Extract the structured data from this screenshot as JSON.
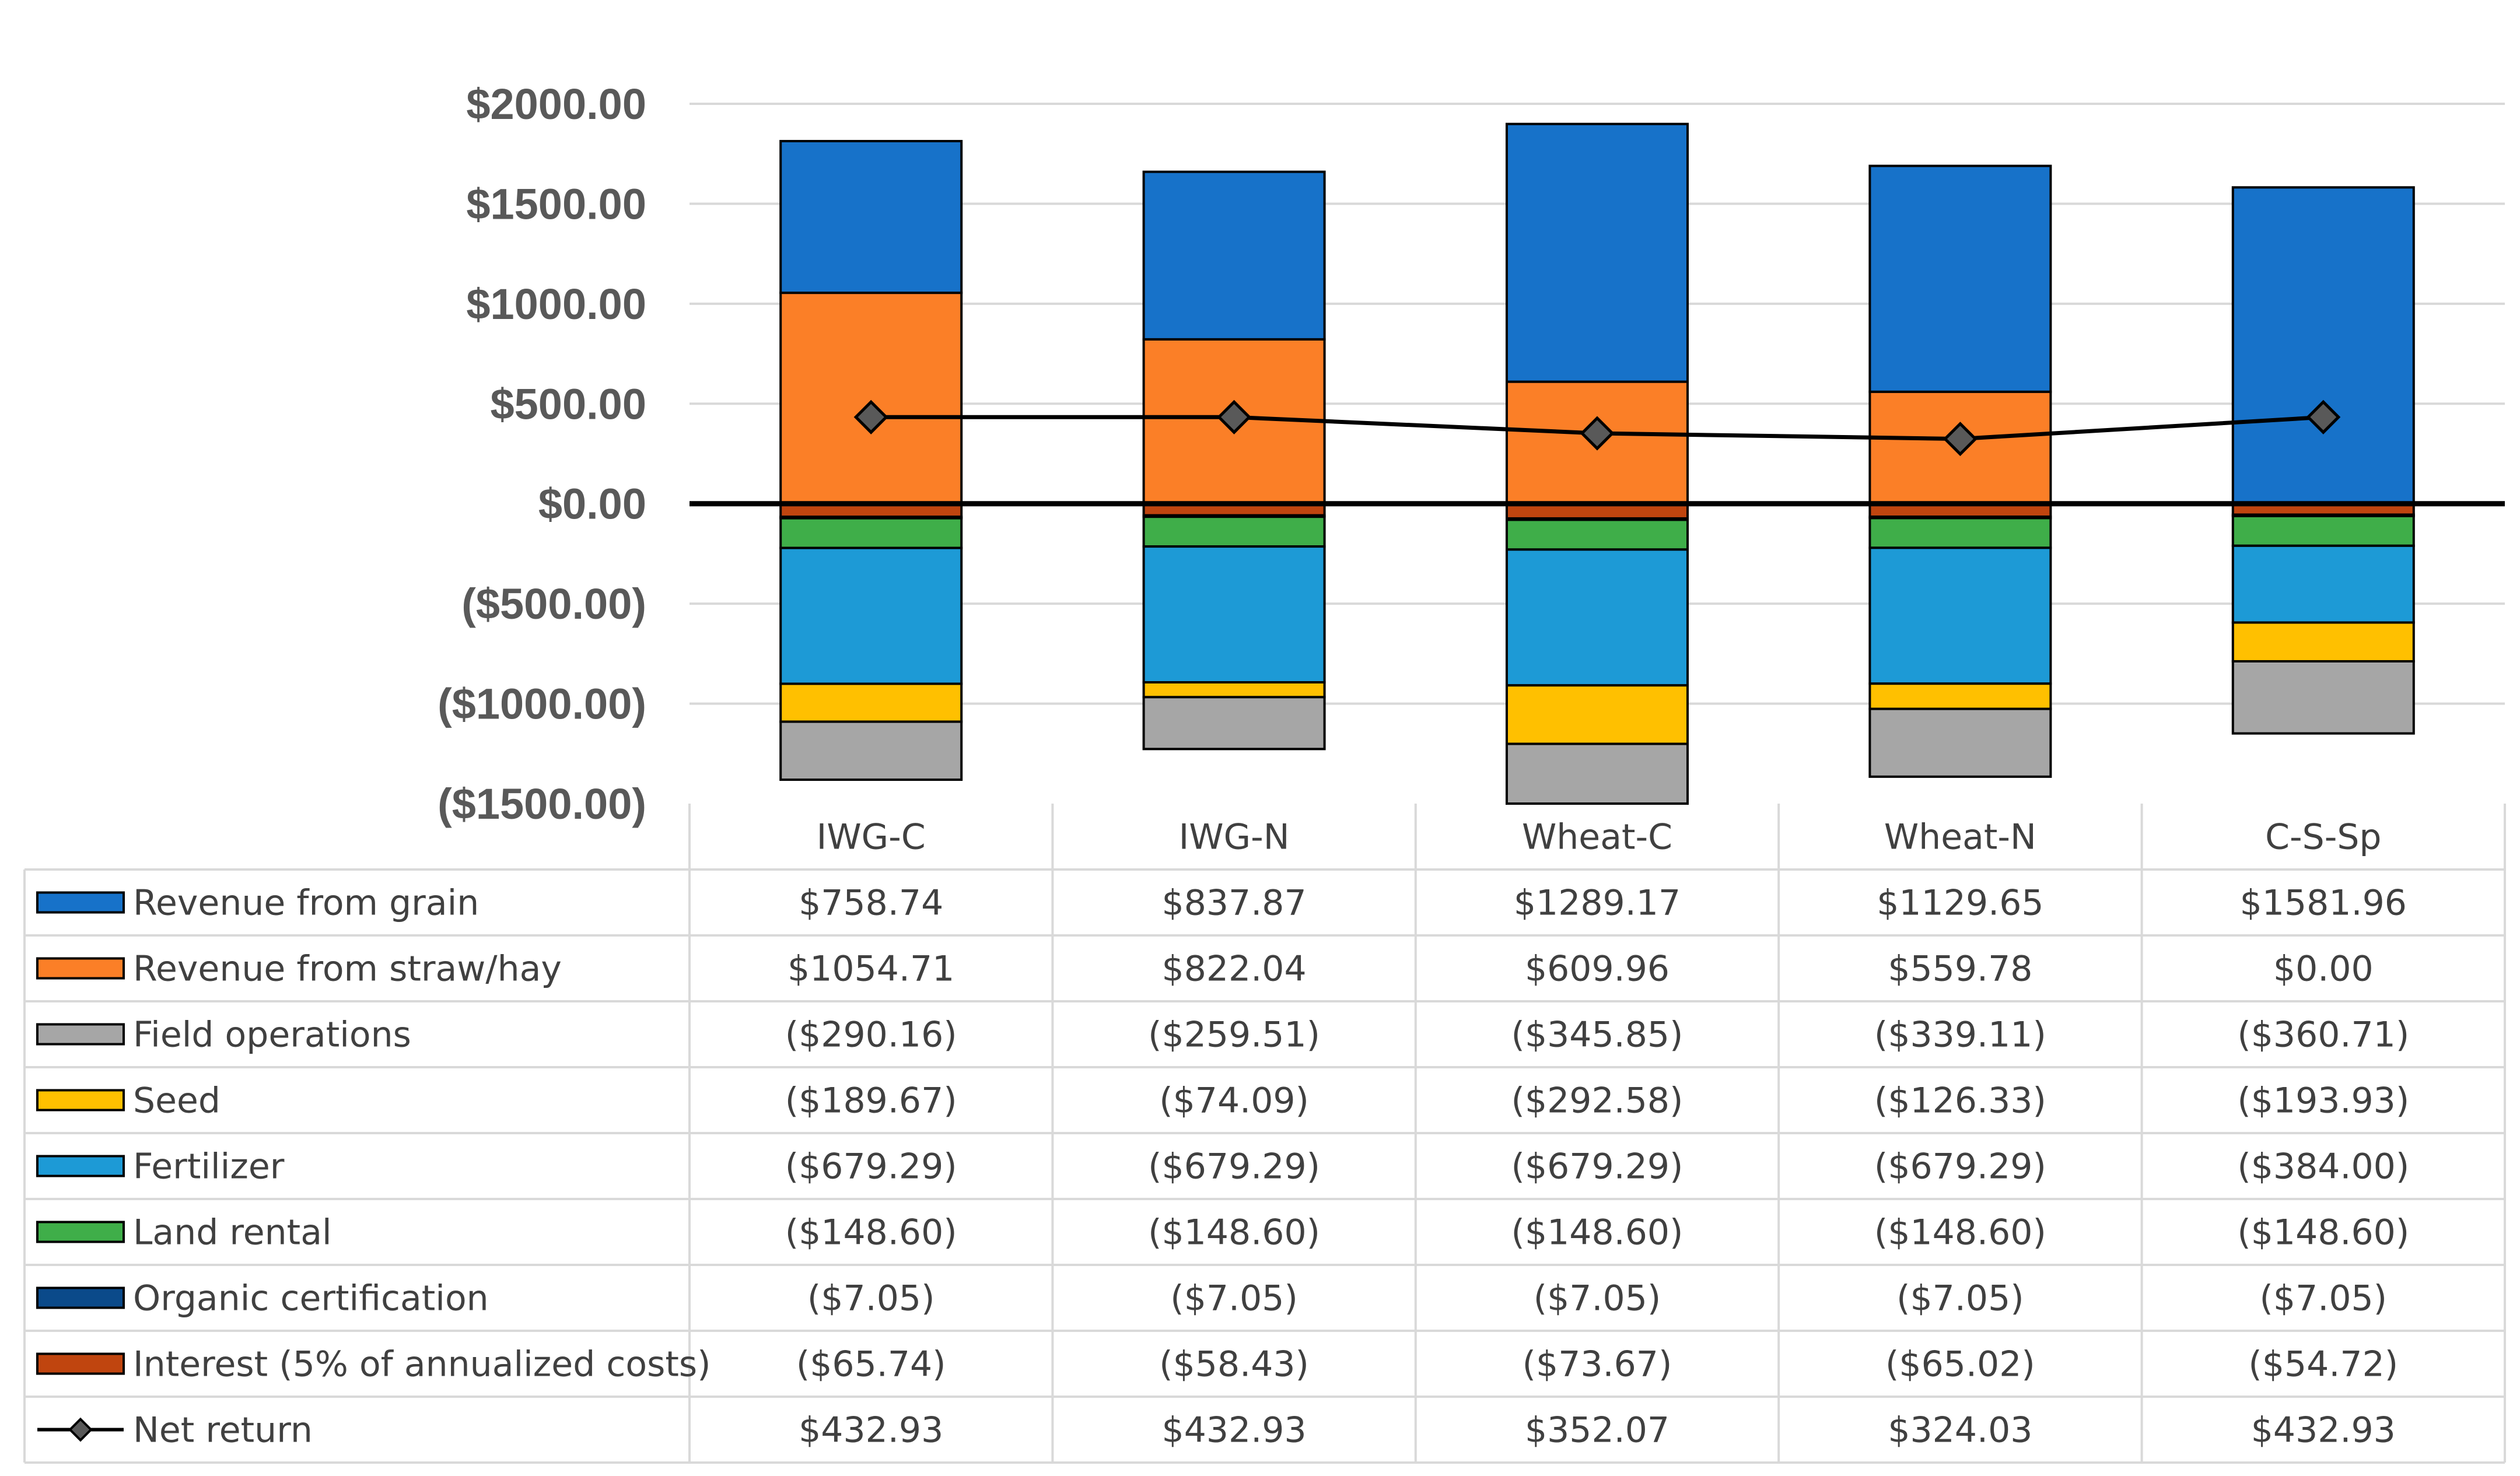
{
  "chart_data": {
    "type": "bar",
    "stacked": true,
    "title": "",
    "xlabel": "",
    "ylabel": "",
    "ylim": [
      -1500,
      2000
    ],
    "ytick_values": [
      2000,
      1500,
      1000,
      500,
      0,
      -500,
      -1000,
      -1500
    ],
    "ytick_labels": [
      "$2000.00",
      "$1500.00",
      "$1000.00",
      "$500.00",
      "$0.00",
      "($500.00)",
      "($1000.00)",
      "($1500.00)"
    ],
    "grid": true,
    "legend": "data-table-left",
    "categories": [
      "IWG-C",
      "IWG-N",
      "Wheat-C",
      "Wheat-N",
      "C-S-Sp"
    ],
    "series": [
      {
        "name": "Revenue from grain",
        "kind": "bar",
        "color": "#1772c9",
        "values": [
          758.74,
          837.87,
          1289.17,
          1129.65,
          1581.96
        ],
        "labels": [
          "$758.74",
          "$837.87",
          "$1289.17",
          "$1129.65",
          "$1581.96"
        ]
      },
      {
        "name": "Revenue from straw/hay",
        "kind": "bar",
        "color": "#fb7f27",
        "values": [
          1054.71,
          822.04,
          609.96,
          559.78,
          0.0
        ],
        "labels": [
          "$1054.71",
          "$822.04",
          "$609.96",
          "$559.78",
          "$0.00"
        ]
      },
      {
        "name": "Field operations",
        "kind": "bar",
        "color": "#a6a6a6",
        "values": [
          -290.16,
          -259.51,
          -345.85,
          -339.11,
          -360.71
        ],
        "labels": [
          "($290.16)",
          "($259.51)",
          "($345.85)",
          "($339.11)",
          "($360.71)"
        ]
      },
      {
        "name": "Seed",
        "kind": "bar",
        "color": "#ffc000",
        "values": [
          -189.67,
          -74.09,
          -292.58,
          -126.33,
          -193.93
        ],
        "labels": [
          "($189.67)",
          "($74.09)",
          "($292.58)",
          "($126.33)",
          "($193.93)"
        ]
      },
      {
        "name": "Fertilizer",
        "kind": "bar",
        "color": "#1d9ad6",
        "values": [
          -679.29,
          -679.29,
          -679.29,
          -679.29,
          -384.0
        ],
        "labels": [
          "($679.29)",
          "($679.29)",
          "($679.29)",
          "($679.29)",
          "($384.00)"
        ]
      },
      {
        "name": "Land rental",
        "kind": "bar",
        "color": "#3fae49",
        "values": [
          -148.6,
          -148.6,
          -148.6,
          -148.6,
          -148.6
        ],
        "labels": [
          "($148.60)",
          "($148.60)",
          "($148.60)",
          "($148.60)",
          "($148.60)"
        ]
      },
      {
        "name": "Organic certification",
        "kind": "bar",
        "color": "#0b4a8a",
        "values": [
          -7.05,
          -7.05,
          -7.05,
          -7.05,
          -7.05
        ],
        "labels": [
          "($7.05)",
          "($7.05)",
          "($7.05)",
          "($7.05)",
          "($7.05)"
        ]
      },
      {
        "name": "Interest (5% of annualized costs)",
        "kind": "bar",
        "color": "#c0450f",
        "values": [
          -65.74,
          -58.43,
          -73.67,
          -65.02,
          -54.72
        ],
        "labels": [
          "($65.74)",
          "($58.43)",
          "($73.67)",
          "($65.02)",
          "($54.72)"
        ]
      },
      {
        "name": "Net return",
        "kind": "line",
        "color": "#000000",
        "marker_color": "#595959",
        "values": [
          432.93,
          432.93,
          352.07,
          324.03,
          432.93
        ],
        "labels": [
          "$432.93",
          "$432.93",
          "$352.07",
          "$324.03",
          "$432.93"
        ]
      }
    ]
  }
}
